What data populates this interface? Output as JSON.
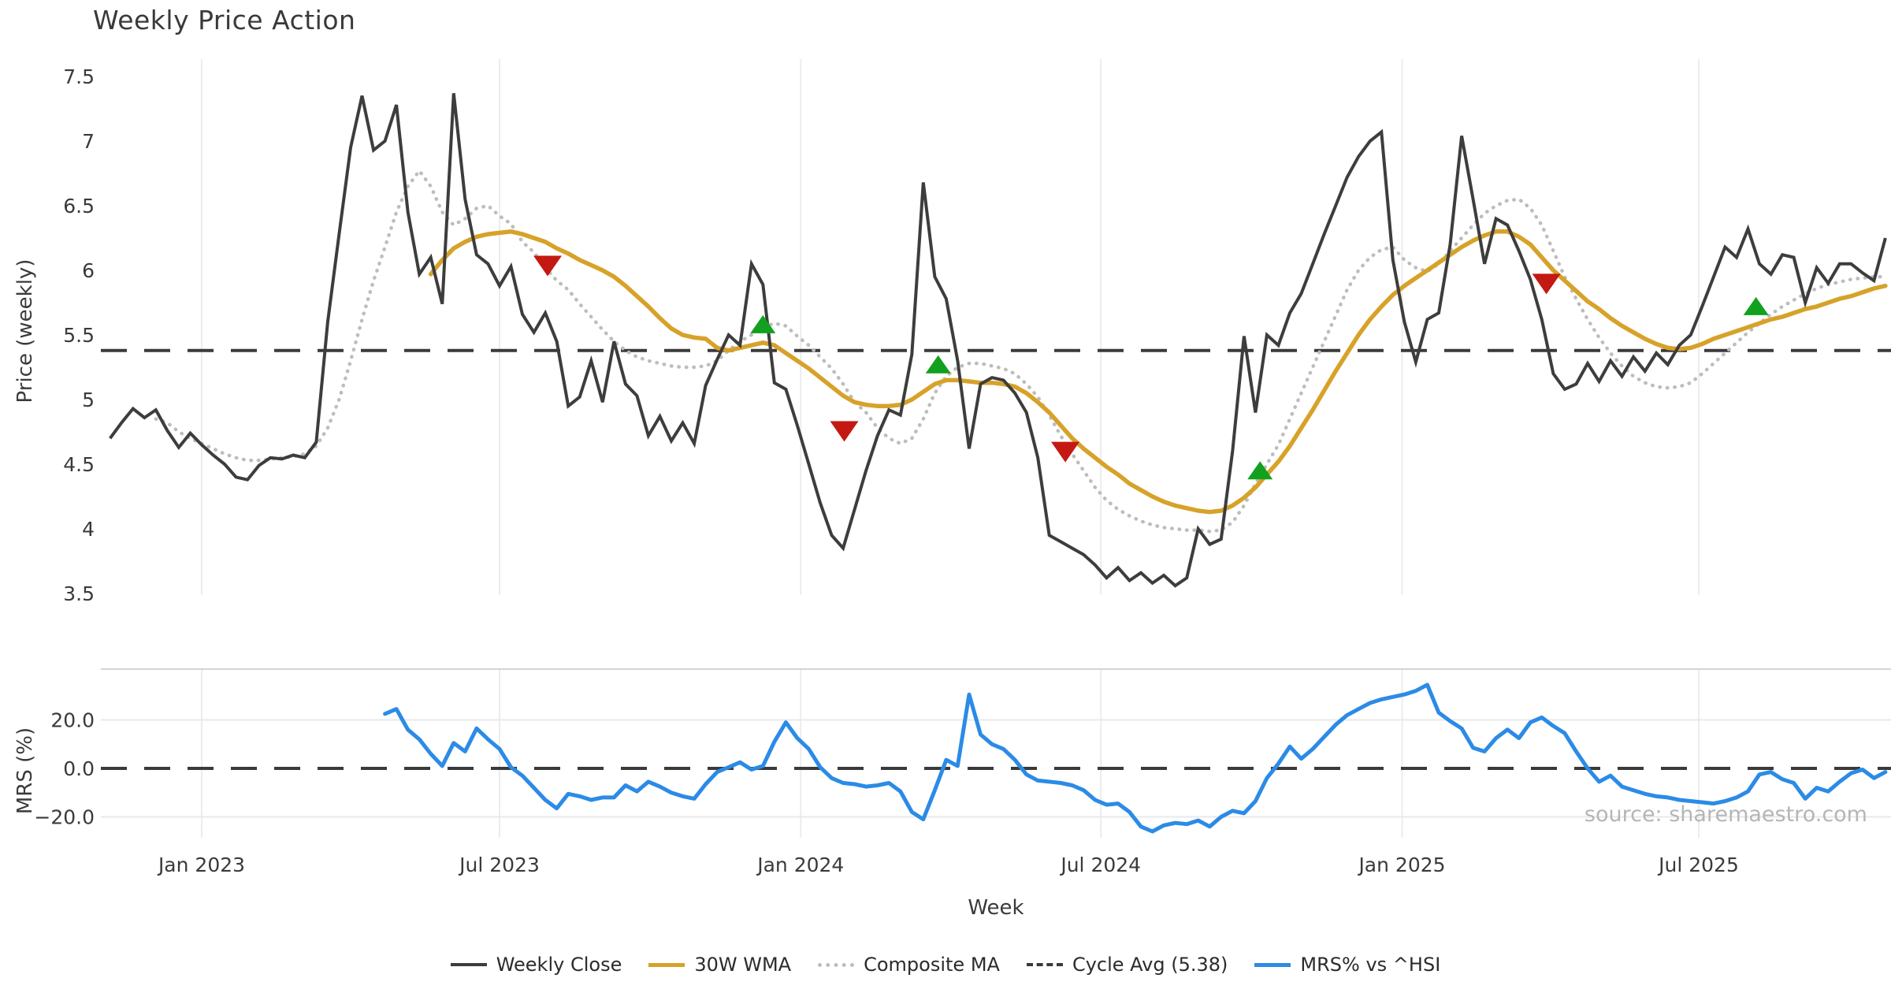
{
  "title": "Weekly Price Action",
  "source_note": "source: sharemaestro.com",
  "axes": {
    "price_label": "Price (weekly)",
    "mrs_label": "MRS (%)",
    "x_label": "Week",
    "price_ticks": [
      {
        "v": 7.5,
        "label": "7.5"
      },
      {
        "v": 7.0,
        "label": "7"
      },
      {
        "v": 6.5,
        "label": "6.5"
      },
      {
        "v": 6.0,
        "label": "6"
      },
      {
        "v": 5.5,
        "label": "5.5"
      },
      {
        "v": 5.0,
        "label": "5"
      },
      {
        "v": 4.5,
        "label": "4.5"
      },
      {
        "v": 4.0,
        "label": "4"
      },
      {
        "v": 3.5,
        "label": "3.5"
      }
    ],
    "mrs_ticks": [
      {
        "v": 20,
        "label": "20.0"
      },
      {
        "v": 0,
        "label": "0.0"
      },
      {
        "v": -20,
        "label": "−20.0"
      }
    ],
    "x_ticks": [
      {
        "week": 8.0,
        "label": "Jan 2023"
      },
      {
        "week": 34.0,
        "label": "Jul 2023"
      },
      {
        "week": 60.3,
        "label": "Jan 2024"
      },
      {
        "week": 86.5,
        "label": "Jul 2024"
      },
      {
        "week": 112.8,
        "label": "Jan 2025"
      },
      {
        "week": 138.7,
        "label": "Jul 2025"
      }
    ]
  },
  "legend": [
    {
      "label": "Weekly Close",
      "swatch": "close"
    },
    {
      "label": "30W WMA",
      "swatch": "wma"
    },
    {
      "label": "Composite MA",
      "swatch": "composite"
    },
    {
      "label": "Cycle Avg (5.38)",
      "swatch": "cycle"
    },
    {
      "label": "MRS% vs ^HSI",
      "swatch": "mrs"
    }
  ],
  "colors": {
    "close": "#3d3d3d",
    "wma": "#d7a229",
    "composite": "#bdbdbd",
    "cycle_avg": "#3a3a3a",
    "mrs": "#2b8be6",
    "sell": "#c41912",
    "buy": "#12a01f",
    "grid": "#ececec",
    "grid_soft": "#e9e9e9",
    "panel_border": "#d4d4d4",
    "tick_text": "#3a3a3a",
    "source_text": "#b5b5b5"
  },
  "chart_data": {
    "type": "line",
    "title": "Weekly Price Action",
    "xlabel": "Week",
    "ylabel_top": "Price (weekly)",
    "ylabel_bottom": "MRS (%)",
    "price_ylim": [
      3.5,
      7.5
    ],
    "mrs_ylim": [
      -33,
      41
    ],
    "cycle_avg": 5.38,
    "mrs_zero_line": 0,
    "legend_position": "bottom-center",
    "grid": "vertical-only-top, horizontal-bottom",
    "series": {
      "weekly_close": {
        "name": "Weekly Close",
        "start_week": 0,
        "values": [
          4.7,
          4.82,
          4.93,
          4.86,
          4.92,
          4.76,
          4.63,
          4.74,
          4.65,
          4.57,
          4.5,
          4.4,
          4.38,
          4.49,
          4.55,
          4.54,
          4.57,
          4.55,
          4.67,
          5.6,
          6.28,
          6.95,
          7.35,
          6.93,
          7.0,
          7.28,
          6.45,
          5.97,
          6.1,
          5.74,
          7.37,
          6.55,
          6.12,
          6.05,
          5.88,
          6.03,
          5.66,
          5.52,
          5.67,
          5.45,
          4.95,
          5.02,
          5.3,
          4.98,
          5.45,
          5.12,
          5.03,
          4.72,
          4.87,
          4.68,
          4.82,
          4.66,
          5.11,
          5.31,
          5.5,
          5.42,
          6.05,
          5.89,
          5.13,
          5.08,
          4.8,
          4.5,
          4.2,
          3.95,
          3.85,
          4.15,
          4.45,
          4.72,
          4.92,
          4.88,
          5.35,
          6.68,
          5.95,
          5.78,
          5.3,
          4.62,
          5.12,
          5.17,
          5.15,
          5.05,
          4.9,
          4.55,
          3.95,
          3.9,
          3.85,
          3.8,
          3.72,
          3.62,
          3.7,
          3.6,
          3.66,
          3.58,
          3.64,
          3.56,
          3.62,
          4.0,
          3.88,
          3.92,
          4.6,
          5.49,
          4.9,
          5.5,
          5.42,
          5.67,
          5.82,
          6.05,
          6.28,
          6.5,
          6.72,
          6.88,
          7.0,
          7.07,
          6.08,
          5.6,
          5.29,
          5.62,
          5.67,
          6.2,
          7.04,
          6.55,
          6.05,
          6.4,
          6.35,
          6.15,
          5.93,
          5.62,
          5.2,
          5.08,
          5.12,
          5.28,
          5.14,
          5.3,
          5.18,
          5.33,
          5.22,
          5.36,
          5.27,
          5.42,
          5.5,
          5.72,
          5.95,
          6.18,
          6.1,
          6.32,
          6.05,
          5.97,
          6.12,
          6.1,
          5.75,
          6.02,
          5.9,
          6.05,
          6.05,
          5.98,
          5.92,
          6.25
        ]
      },
      "wma30": {
        "name": "30W WMA",
        "start_week": 28,
        "values": [
          5.97,
          6.08,
          6.17,
          6.22,
          6.26,
          6.28,
          6.29,
          6.3,
          6.28,
          6.25,
          6.22,
          6.17,
          6.13,
          6.08,
          6.04,
          6.0,
          5.95,
          5.88,
          5.8,
          5.72,
          5.63,
          5.55,
          5.5,
          5.48,
          5.47,
          5.4,
          5.38,
          5.4,
          5.42,
          5.44,
          5.42,
          5.36,
          5.3,
          5.24,
          5.17,
          5.1,
          5.03,
          4.98,
          4.96,
          4.95,
          4.95,
          4.96,
          5.0,
          5.06,
          5.12,
          5.15,
          5.15,
          5.14,
          5.13,
          5.13,
          5.12,
          5.1,
          5.05,
          4.98,
          4.9,
          4.8,
          4.7,
          4.62,
          4.55,
          4.48,
          4.42,
          4.35,
          4.3,
          4.25,
          4.21,
          4.18,
          4.16,
          4.14,
          4.13,
          4.14,
          4.18,
          4.24,
          4.32,
          4.42,
          4.52,
          4.64,
          4.78,
          4.92,
          5.07,
          5.22,
          5.36,
          5.5,
          5.62,
          5.72,
          5.81,
          5.88,
          5.94,
          6.0,
          6.06,
          6.12,
          6.18,
          6.23,
          6.27,
          6.3,
          6.3,
          6.26,
          6.2,
          6.1,
          6.0,
          5.92,
          5.84,
          5.76,
          5.7,
          5.63,
          5.57,
          5.52,
          5.47,
          5.43,
          5.4,
          5.39,
          5.4,
          5.43,
          5.47,
          5.5,
          5.53,
          5.56,
          5.59,
          5.62,
          5.64,
          5.67,
          5.7,
          5.72,
          5.75,
          5.78,
          5.8,
          5.83,
          5.86,
          5.88
        ]
      },
      "composite_ma": {
        "name": "Composite MA",
        "start_week": 4,
        "values": [
          4.85,
          4.82,
          4.75,
          4.7,
          4.66,
          4.62,
          4.58,
          4.55,
          4.53,
          4.53,
          4.54,
          4.55,
          4.56,
          4.58,
          4.64,
          4.78,
          5.0,
          5.3,
          5.62,
          5.92,
          6.18,
          6.45,
          6.65,
          6.77,
          6.65,
          6.45,
          6.35,
          6.4,
          6.48,
          6.5,
          6.42,
          6.36,
          6.22,
          6.14,
          6.02,
          5.92,
          5.85,
          5.74,
          5.64,
          5.54,
          5.45,
          5.38,
          5.33,
          5.3,
          5.28,
          5.26,
          5.25,
          5.25,
          5.26,
          5.3,
          5.38,
          5.45,
          5.5,
          5.56,
          5.59,
          5.57,
          5.49,
          5.42,
          5.33,
          5.24,
          5.12,
          4.98,
          4.9,
          4.78,
          4.7,
          4.66,
          4.7,
          4.85,
          5.05,
          5.18,
          5.25,
          5.28,
          5.28,
          5.26,
          5.24,
          5.2,
          5.12,
          5.02,
          4.88,
          4.72,
          4.58,
          4.45,
          4.32,
          4.22,
          4.15,
          4.1,
          4.06,
          4.03,
          4.01,
          4.0,
          3.99,
          3.99,
          3.98,
          3.99,
          4.05,
          4.18,
          4.35,
          4.5,
          4.65,
          4.85,
          5.05,
          5.25,
          5.45,
          5.65,
          5.85,
          6.0,
          6.1,
          6.16,
          6.18,
          6.08,
          6.02,
          5.99,
          6.05,
          6.15,
          6.25,
          6.35,
          6.44,
          6.5,
          6.54,
          6.55,
          6.48,
          6.35,
          6.15,
          5.95,
          5.78,
          5.62,
          5.48,
          5.36,
          5.26,
          5.18,
          5.13,
          5.1,
          5.09,
          5.1,
          5.13,
          5.2,
          5.28,
          5.36,
          5.44,
          5.52,
          5.59,
          5.66,
          5.72,
          5.77,
          5.82,
          5.86,
          5.89,
          5.91,
          5.93,
          5.94,
          5.95,
          5.95
        ]
      },
      "mrs_pct": {
        "name": "MRS% vs ^HSI",
        "start_week": 24,
        "values": [
          22.5,
          24.5,
          16,
          12,
          6,
          1,
          10.5,
          7,
          16.5,
          12,
          8,
          0.5,
          -3,
          -8,
          -13,
          -16.5,
          -10.5,
          -11.5,
          -13,
          -12,
          -12,
          -7,
          -9.5,
          -5.5,
          -7.5,
          -10,
          -11.5,
          -12.5,
          -6.5,
          -1.5,
          0.5,
          2.5,
          -0.5,
          1,
          11,
          19,
          12.5,
          8,
          0.5,
          -4,
          -6,
          -6.5,
          -7.5,
          -7,
          -6,
          -9.5,
          -18,
          -21,
          -9,
          3.5,
          1,
          30.5,
          14,
          10,
          8,
          3.5,
          -2.5,
          -5,
          -5.5,
          -6,
          -7,
          -9,
          -13,
          -15,
          -14.5,
          -18,
          -24,
          -26,
          -23.5,
          -22.5,
          -23,
          -21.5,
          -24,
          -20,
          -17.5,
          -18.5,
          -13.5,
          -4,
          2,
          9,
          4,
          8,
          13,
          18,
          22,
          24.5,
          27,
          28.5,
          29.5,
          30.5,
          32,
          34.5,
          23,
          19.5,
          16.5,
          8.5,
          7,
          12.5,
          16,
          12.5,
          19,
          21,
          17.5,
          14.5,
          7,
          0,
          -5.5,
          -3,
          -7.5,
          -9,
          -10.5,
          -11.5,
          -12,
          -13,
          -13.5,
          -14,
          -14.5,
          -13.5,
          -12,
          -9.5,
          -2.5,
          -1.5,
          -4.5,
          -6,
          -12.5,
          -8,
          -9.5,
          -5.5,
          -2,
          -0.5,
          -4,
          -1.5
        ]
      }
    },
    "markers": [
      {
        "week": 38.2,
        "price": 6.04,
        "type": "sell"
      },
      {
        "week": 57.0,
        "price": 5.58,
        "type": "buy"
      },
      {
        "week": 64.1,
        "price": 4.76,
        "type": "sell"
      },
      {
        "week": 72.3,
        "price": 5.27,
        "type": "buy"
      },
      {
        "week": 83.4,
        "price": 4.6,
        "type": "sell"
      },
      {
        "week": 100.4,
        "price": 4.45,
        "type": "buy"
      },
      {
        "week": 125.4,
        "price": 5.9,
        "type": "sell"
      },
      {
        "week": 143.7,
        "price": 5.72,
        "type": "buy"
      }
    ]
  }
}
